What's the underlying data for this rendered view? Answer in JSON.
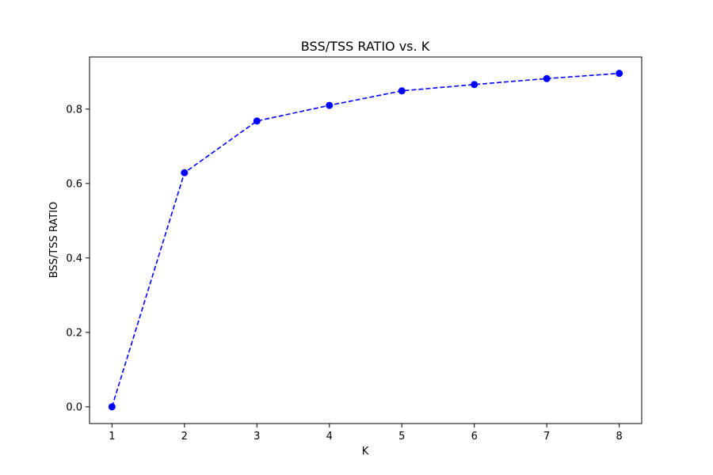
{
  "chart_data": {
    "type": "line",
    "title": "BSS/TSS RATIO vs. K",
    "xlabel": "K",
    "ylabel": "BSS/TSS RATIO",
    "x": [
      1,
      2,
      3,
      4,
      5,
      6,
      7,
      8
    ],
    "series": [
      {
        "values": [
          0.0,
          0.629,
          0.768,
          0.81,
          0.849,
          0.866,
          0.882,
          0.896
        ],
        "color": "#0000ff",
        "line_style": "dashed",
        "marker": "circle"
      }
    ],
    "xlim": [
      0.69,
      8.31
    ],
    "ylim": [
      -0.045,
      0.94
    ],
    "x_ticks": [
      "1",
      "2",
      "3",
      "4",
      "5",
      "6",
      "7",
      "8"
    ],
    "y_ticks": [
      "0.0",
      "0.2",
      "0.4",
      "0.6",
      "0.8"
    ],
    "grid": false,
    "legend": "none"
  }
}
